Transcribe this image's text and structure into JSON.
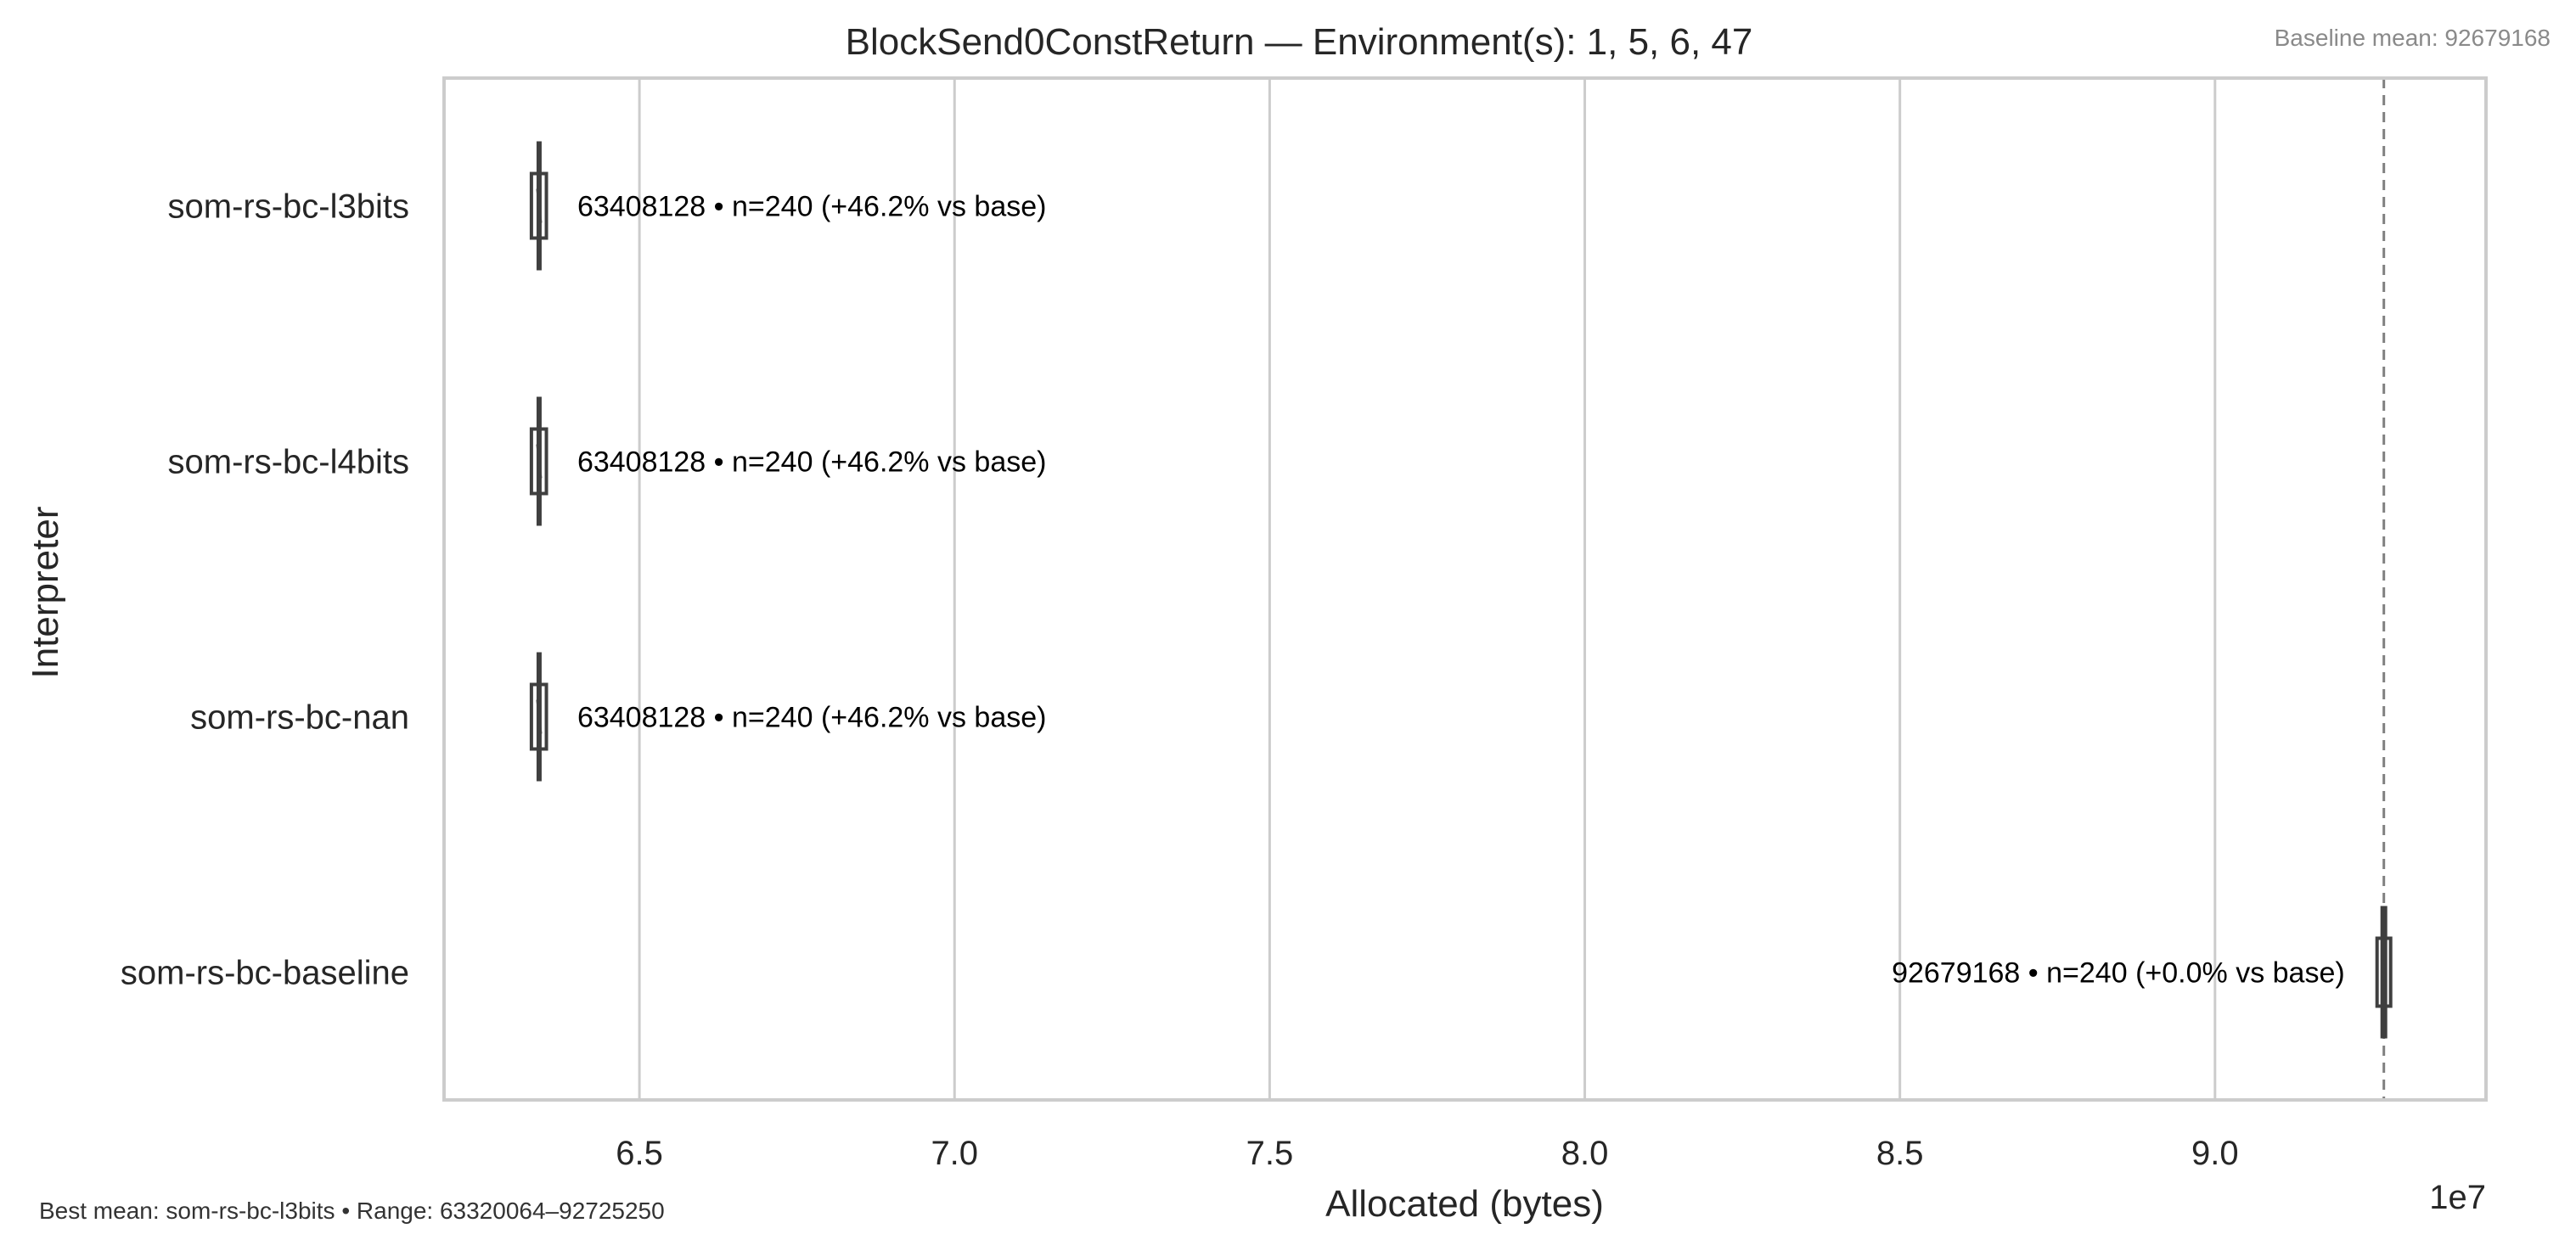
{
  "chart_data": {
    "type": "box",
    "title": "BlockSend0ConstReturn — Environment(s): 1, 5, 6, 47",
    "baseline_note": "Baseline mean: 92679168",
    "footer_note": "Best mean: som-rs-bc-l3bits • Range: 63320064–92725250",
    "xlabel": "Allocated (bytes)",
    "ylabel": "Interpreter",
    "x_offset_label": "1e7",
    "xlim": [
      6.19,
      9.43
    ],
    "xticks": [
      6.5,
      7.0,
      7.5,
      8.0,
      8.5,
      9.0
    ],
    "xtick_labels": [
      "6.5",
      "7.0",
      "7.5",
      "8.0",
      "8.5",
      "9.0"
    ],
    "grid": true,
    "baseline_value": 9.2679168,
    "categories": [
      "som-rs-bc-l3bits",
      "som-rs-bc-l4bits",
      "som-rs-bc-nan",
      "som-rs-bc-baseline"
    ],
    "series": [
      {
        "category": "som-rs-bc-l3bits",
        "whisker_low": 6.3320064,
        "q1": 6.334,
        "median": 6.3408128,
        "q3": 6.347,
        "whisker_high": 6.347,
        "label": "63408128 • n=240 (+46.2% vs base)"
      },
      {
        "category": "som-rs-bc-l4bits",
        "whisker_low": 6.3320064,
        "q1": 6.334,
        "median": 6.3408128,
        "q3": 6.347,
        "whisker_high": 6.347,
        "label": "63408128 • n=240 (+46.2% vs base)"
      },
      {
        "category": "som-rs-bc-nan",
        "whisker_low": 6.3320064,
        "q1": 6.334,
        "median": 6.3408128,
        "q3": 6.347,
        "whisker_high": 6.347,
        "label": "63408128 • n=240 (+46.2% vs base)"
      },
      {
        "category": "som-rs-bc-baseline",
        "whisker_low": 9.263,
        "q1": 9.265,
        "median": 9.2679168,
        "q3": 9.27,
        "whisker_high": 9.272525,
        "label": "92679168 • n=240 (+0.0% vs base)"
      }
    ],
    "colors": {
      "box_line": "#3f3f3f",
      "baseline_line": "#808080",
      "grid": "#cccccc",
      "frame": "#cccccc"
    }
  }
}
